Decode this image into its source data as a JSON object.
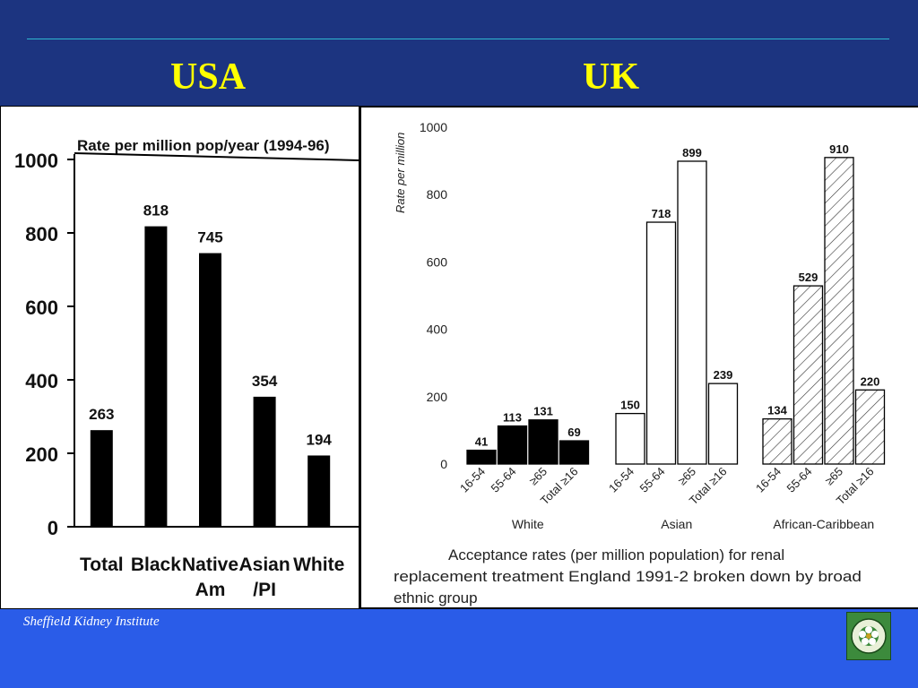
{
  "slide": {
    "usa_heading": "USA",
    "uk_heading": "UK",
    "footer": "Sheffield Kidney Institute"
  },
  "colors": {
    "background": "#1c3480",
    "heading": "#ffff00",
    "footer_band": "#2a5ce8",
    "rule": "#2fb8d0"
  },
  "logo": {
    "icon": "kidney-institute-logo-icon"
  },
  "chart_data": [
    {
      "type": "bar",
      "title": "Rate per million pop/year (1994-96)",
      "categories": [
        "Total",
        "Black",
        "Native Am",
        "Asian /PI",
        "White"
      ],
      "category_lines": [
        [
          "Total"
        ],
        [
          "Black"
        ],
        [
          "Native",
          "Am"
        ],
        [
          "Asian",
          "/PI"
        ],
        [
          "White"
        ]
      ],
      "values": [
        263,
        818,
        745,
        354,
        194
      ],
      "ylim": [
        0,
        1000
      ],
      "yticks": [
        0,
        200,
        400,
        600,
        800,
        1000
      ],
      "grid": false
    },
    {
      "type": "bar",
      "ylabel": "Rate per million",
      "caption_lines": [
        "Acceptance rates (per million population) for renal",
        "replacement treatment England 1991-2 broken down by broad",
        "ethnic group"
      ],
      "ylim": [
        0,
        1000
      ],
      "yticks": [
        0,
        200,
        400,
        600,
        800,
        1000
      ],
      "grid": false,
      "categories": [
        "16-54",
        "55-64",
        "≥65",
        "Total ≥16"
      ],
      "groups": [
        {
          "name": "White",
          "values": [
            41,
            113,
            131,
            69
          ],
          "fill": "solid"
        },
        {
          "name": "Asian",
          "values": [
            150,
            718,
            899,
            239
          ],
          "fill": "open"
        },
        {
          "name": "African-Caribbean",
          "values": [
            134,
            529,
            910,
            220
          ],
          "fill": "hatched"
        }
      ]
    }
  ]
}
